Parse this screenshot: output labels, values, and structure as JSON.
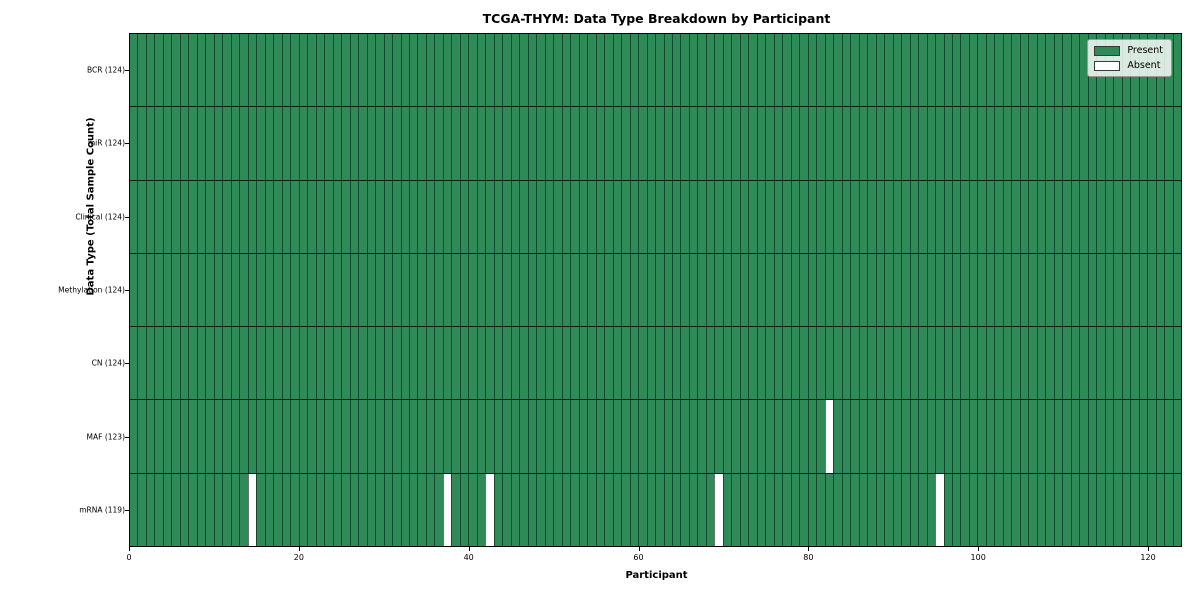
{
  "chart_data": {
    "type": "heatmap",
    "title": "TCGA-THYM: Data Type Breakdown by Participant",
    "xlabel": "Participant",
    "ylabel": "Data Type (Total Sample Count)",
    "x_ticks": [
      0,
      20,
      40,
      60,
      80,
      100,
      120
    ],
    "xlim": [
      0,
      124
    ],
    "n_participants": 124,
    "grid": "cell-edges-only",
    "legend_position": "upper right",
    "rows": [
      {
        "label": "BCR (124)",
        "data_type": "BCR",
        "present_count": 124,
        "absent_participants": []
      },
      {
        "label": "miR (124)",
        "data_type": "miR",
        "present_count": 124,
        "absent_participants": []
      },
      {
        "label": "Clinical (124)",
        "data_type": "Clinical",
        "present_count": 124,
        "absent_participants": []
      },
      {
        "label": "Methylation (124)",
        "data_type": "Methylation",
        "present_count": 124,
        "absent_participants": []
      },
      {
        "label": "CN (124)",
        "data_type": "CN",
        "present_count": 124,
        "absent_participants": []
      },
      {
        "label": "MAF (123)",
        "data_type": "MAF",
        "present_count": 123,
        "absent_participants": [
          82
        ]
      },
      {
        "label": "mRNA (119)",
        "data_type": "mRNA",
        "present_count": 119,
        "absent_participants": [
          14,
          37,
          42,
          69,
          95
        ]
      }
    ],
    "legend": [
      {
        "label": "Present",
        "color": "#2e8b57"
      },
      {
        "label": "Absent",
        "color": "#ffffff"
      }
    ],
    "colors": {
      "present": "#2e8b57",
      "absent": "#ffffff",
      "cell_edge": "rgba(8,32,20,0.62)",
      "row_separator": "#0c1f14",
      "spine": "#000000"
    }
  }
}
